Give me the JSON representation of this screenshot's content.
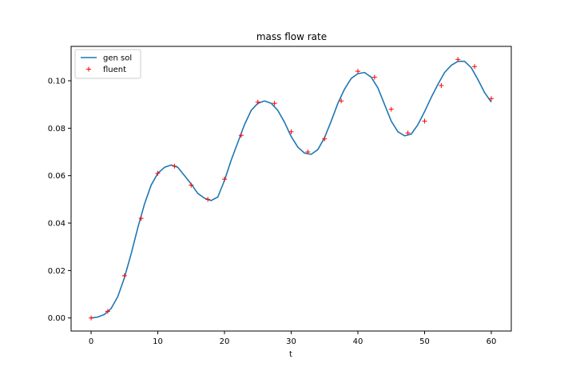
{
  "chart_data": {
    "type": "line",
    "title": "mass flow rate",
    "xlabel": "t",
    "ylabel": "",
    "xlim": [
      -3,
      63
    ],
    "ylim": [
      -0.0055,
      0.1145
    ],
    "x_ticks": [
      0,
      10,
      20,
      30,
      40,
      50,
      60
    ],
    "y_ticks": [
      0.0,
      0.02,
      0.04,
      0.06,
      0.08,
      0.1
    ],
    "x_tick_labels": [
      "0",
      "10",
      "20",
      "30",
      "40",
      "50",
      "60"
    ],
    "y_tick_labels": [
      "0.00",
      "0.02",
      "0.04",
      "0.06",
      "0.08",
      "0.10"
    ],
    "grid": false,
    "legend_position": "upper-left",
    "series": [
      {
        "name": "gen sol",
        "kind": "line",
        "color": "#1f77b4",
        "x": [
          0,
          1,
          2,
          3,
          4,
          5,
          6,
          7,
          8,
          9,
          10,
          11,
          12,
          13,
          14,
          15,
          16,
          17,
          18,
          19,
          20,
          21,
          22,
          23,
          24,
          25,
          26,
          27,
          28,
          29,
          30,
          31,
          32,
          33,
          34,
          35,
          36,
          37,
          38,
          39,
          40,
          41,
          42,
          43,
          44,
          45,
          46,
          47,
          48,
          49,
          50,
          51,
          52,
          53,
          54,
          55,
          56,
          57,
          58,
          59,
          60
        ],
        "y": [
          0.0,
          0.0004,
          0.0015,
          0.004,
          0.009,
          0.017,
          0.027,
          0.038,
          0.048,
          0.056,
          0.061,
          0.0635,
          0.0645,
          0.0635,
          0.06,
          0.0565,
          0.0525,
          0.0505,
          0.0495,
          0.051,
          0.058,
          0.0665,
          0.074,
          0.0815,
          0.0875,
          0.0905,
          0.0915,
          0.0905,
          0.0875,
          0.0825,
          0.0765,
          0.072,
          0.0695,
          0.069,
          0.071,
          0.076,
          0.083,
          0.0905,
          0.0965,
          0.101,
          0.103,
          0.1035,
          0.1015,
          0.097,
          0.09,
          0.083,
          0.0785,
          0.0768,
          0.0775,
          0.0815,
          0.087,
          0.093,
          0.0985,
          0.1035,
          0.1065,
          0.1082,
          0.1082,
          0.1055,
          0.1005,
          0.095,
          0.091
        ]
      },
      {
        "name": "fluent",
        "kind": "marker",
        "marker": "+",
        "color": "#ff0000",
        "x": [
          0,
          2.5,
          5,
          7.5,
          10,
          12.5,
          15,
          17.5,
          20,
          22.5,
          25,
          27.5,
          30,
          32.5,
          35,
          37.5,
          40,
          42.5,
          45,
          47.5,
          50,
          52.5,
          55,
          57.5,
          60
        ],
        "y": [
          0.0,
          0.0028,
          0.0178,
          0.042,
          0.061,
          0.064,
          0.056,
          0.05,
          0.0585,
          0.077,
          0.091,
          0.0905,
          0.0785,
          0.07,
          0.0755,
          0.0915,
          0.104,
          0.1015,
          0.088,
          0.078,
          0.083,
          0.098,
          0.109,
          0.106,
          0.0925
        ]
      }
    ]
  }
}
